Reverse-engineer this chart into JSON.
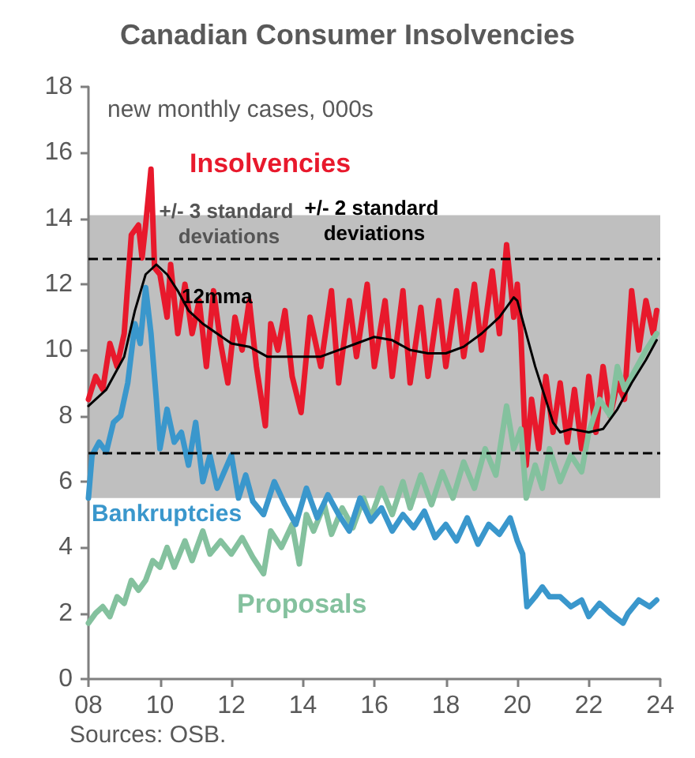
{
  "chart_data": {
    "type": "line",
    "title": "Canadian Consumer Insolvencies",
    "xlim": [
      8,
      24
    ],
    "xticks": [
      {
        "value": 8,
        "label": "08"
      },
      {
        "value": 10,
        "label": "10"
      },
      {
        "value": 12,
        "label": "12"
      },
      {
        "value": 14,
        "label": "14"
      },
      {
        "value": 16,
        "label": "16"
      },
      {
        "value": 18,
        "label": "18"
      },
      {
        "value": 20,
        "label": "20"
      },
      {
        "value": 22,
        "label": "22"
      },
      {
        "value": 24,
        "label": "24"
      }
    ],
    "ylim": [
      0,
      18
    ],
    "yticks": [
      0,
      2,
      4,
      6,
      8,
      10,
      12,
      14,
      16,
      18
    ],
    "grid": false,
    "legend": false,
    "marker": "none",
    "bands": [
      {
        "axis": "y",
        "from": 5.5,
        "to": 14.1,
        "label": "+/- 3 standard deviations",
        "color": "#bfbfbf"
      }
    ],
    "ref_lines": [
      {
        "axis": "y",
        "value": 12.8,
        "label": "+/- 2 standard deviations",
        "line_style": "dashed",
        "color": "#000000"
      },
      {
        "axis": "y",
        "value": 6.9,
        "line_style": "dashed",
        "color": "#000000"
      }
    ],
    "annotations": [
      "new monthly cases, 000s",
      "Sources: OSB."
    ],
    "series": [
      {
        "name": "Insolvencies",
        "color": "#e8192c",
        "x": [
          8.0,
          8.2,
          8.4,
          8.6,
          8.8,
          9.0,
          9.2,
          9.4,
          9.5,
          9.6,
          9.75,
          9.85,
          10.0,
          10.2,
          10.3,
          10.5,
          10.7,
          10.9,
          11.1,
          11.3,
          11.5,
          11.7,
          11.9,
          12.1,
          12.3,
          12.5,
          12.7,
          12.95,
          13.1,
          13.3,
          13.5,
          13.7,
          13.95,
          14.2,
          14.5,
          14.8,
          15.0,
          15.3,
          15.5,
          15.8,
          16.0,
          16.3,
          16.5,
          16.8,
          17.0,
          17.3,
          17.5,
          17.8,
          18.0,
          18.3,
          18.5,
          18.8,
          19.0,
          19.3,
          19.5,
          19.7,
          19.9,
          20.0,
          20.1,
          20.25,
          20.4,
          20.6,
          20.8,
          21.0,
          21.2,
          21.4,
          21.6,
          21.8,
          22.0,
          22.2,
          22.4,
          22.6,
          22.8,
          23.0,
          23.2,
          23.4,
          23.6,
          23.8,
          23.9
        ],
        "values": [
          8.5,
          9.2,
          8.8,
          10.2,
          9.5,
          10.5,
          13.5,
          13.8,
          12.8,
          13.8,
          15.5,
          12.5,
          12.3,
          11.0,
          12.6,
          10.5,
          12.0,
          10.5,
          11.5,
          9.5,
          11.8,
          10.2,
          9.0,
          11.0,
          10.0,
          11.5,
          9.5,
          7.7,
          10.8,
          10.0,
          11.2,
          9.2,
          8.1,
          11.0,
          9.5,
          11.8,
          9.0,
          11.5,
          9.8,
          12.0,
          9.5,
          11.5,
          9.2,
          11.8,
          9.0,
          11.3,
          9.2,
          11.5,
          9.5,
          11.8,
          9.8,
          12.0,
          10.0,
          12.4,
          10.5,
          13.2,
          11.0,
          12.0,
          10.5,
          6.5,
          8.5,
          7.0,
          9.2,
          7.5,
          9.0,
          7.2,
          8.8,
          7.0,
          9.2,
          7.5,
          9.5,
          8.0,
          9.0,
          8.5,
          11.8,
          10.0,
          11.5,
          10.5,
          11.2
        ]
      },
      {
        "name": "Proposals",
        "color": "#84c19e",
        "x": [
          8.0,
          8.2,
          8.4,
          8.6,
          8.8,
          9.0,
          9.2,
          9.4,
          9.6,
          9.8,
          10.0,
          10.2,
          10.4,
          10.7,
          10.9,
          11.2,
          11.4,
          11.7,
          12.0,
          12.3,
          12.6,
          12.9,
          13.1,
          13.4,
          13.7,
          13.9,
          14.1,
          14.3,
          14.6,
          14.8,
          15.1,
          15.4,
          15.7,
          15.9,
          16.2,
          16.5,
          16.8,
          17.0,
          17.3,
          17.6,
          17.9,
          18.2,
          18.5,
          18.8,
          19.1,
          19.4,
          19.7,
          19.9,
          20.1,
          20.25,
          20.5,
          20.7,
          20.9,
          21.2,
          21.5,
          21.8,
          22.0,
          22.3,
          22.6,
          22.8,
          23.0,
          23.3,
          23.6,
          23.9
        ],
        "values": [
          1.7,
          2.0,
          2.2,
          1.9,
          2.5,
          2.3,
          3.0,
          2.7,
          3.0,
          3.6,
          3.4,
          4.0,
          3.4,
          4.2,
          3.6,
          4.5,
          3.8,
          4.2,
          3.8,
          4.3,
          3.7,
          3.2,
          4.5,
          4.0,
          4.7,
          3.5,
          5.0,
          4.5,
          5.3,
          4.4,
          5.2,
          4.6,
          5.5,
          4.9,
          5.8,
          5.0,
          6.0,
          5.2,
          6.2,
          5.3,
          6.3,
          5.5,
          6.6,
          5.8,
          7.0,
          6.2,
          8.3,
          7.0,
          7.6,
          5.5,
          6.5,
          5.8,
          7.0,
          6.0,
          6.8,
          6.3,
          7.5,
          8.5,
          8.0,
          9.5,
          8.8,
          9.4,
          10.0,
          10.5
        ]
      },
      {
        "name": "Bankruptcies",
        "color": "#3a97cc",
        "x": [
          8.0,
          8.1,
          8.3,
          8.5,
          8.7,
          8.9,
          9.1,
          9.3,
          9.45,
          9.6,
          9.75,
          9.9,
          10.0,
          10.2,
          10.4,
          10.6,
          10.8,
          11.0,
          11.2,
          11.4,
          11.6,
          11.8,
          12.0,
          12.2,
          12.4,
          12.6,
          12.9,
          13.2,
          13.5,
          13.8,
          14.1,
          14.4,
          14.7,
          15.0,
          15.3,
          15.6,
          15.9,
          16.2,
          16.5,
          16.8,
          17.1,
          17.4,
          17.7,
          18.0,
          18.3,
          18.6,
          18.9,
          19.2,
          19.5,
          19.8,
          20.0,
          20.15,
          20.27,
          20.5,
          20.7,
          20.9,
          21.2,
          21.5,
          21.8,
          22.0,
          22.3,
          22.6,
          22.96,
          23.1,
          23.4,
          23.7,
          23.9
        ],
        "values": [
          5.5,
          6.8,
          7.2,
          6.9,
          7.8,
          8.0,
          9.0,
          10.8,
          10.2,
          11.9,
          10.5,
          8.5,
          7.0,
          8.2,
          7.2,
          7.5,
          6.5,
          7.8,
          6.0,
          6.8,
          5.8,
          6.3,
          6.8,
          5.5,
          6.2,
          5.4,
          5.0,
          6.0,
          5.3,
          4.7,
          5.8,
          4.9,
          5.6,
          5.0,
          4.5,
          5.5,
          4.8,
          5.2,
          4.5,
          5.0,
          4.6,
          5.1,
          4.3,
          4.7,
          4.2,
          4.9,
          4.1,
          4.7,
          4.4,
          4.9,
          4.2,
          3.8,
          2.2,
          2.5,
          2.8,
          2.5,
          2.5,
          2.2,
          2.4,
          1.9,
          2.3,
          2.0,
          1.7,
          2.0,
          2.4,
          2.2,
          2.4
        ]
      },
      {
        "name": "12mma",
        "color": "#000000",
        "x": [
          8.0,
          8.5,
          9.0,
          9.3,
          9.6,
          9.9,
          10.2,
          10.5,
          10.8,
          11.2,
          11.6,
          12.0,
          12.5,
          13.0,
          13.5,
          14.0,
          14.5,
          15.0,
          15.5,
          16.0,
          16.5,
          17.0,
          17.5,
          18.0,
          18.5,
          19.0,
          19.5,
          19.9,
          20.0,
          20.5,
          21.0,
          21.2,
          21.5,
          22.0,
          22.4,
          22.8,
          23.2,
          23.6,
          23.9
        ],
        "values": [
          8.3,
          8.8,
          9.8,
          11.2,
          12.3,
          12.6,
          12.3,
          11.8,
          11.2,
          10.8,
          10.5,
          10.2,
          10.1,
          9.8,
          9.8,
          9.8,
          9.8,
          10.0,
          10.2,
          10.4,
          10.3,
          10.0,
          9.9,
          9.9,
          10.1,
          10.5,
          11.0,
          11.6,
          11.5,
          9.5,
          7.8,
          7.5,
          7.6,
          7.5,
          7.6,
          8.2,
          9.0,
          9.7,
          10.3
        ]
      }
    ]
  }
}
